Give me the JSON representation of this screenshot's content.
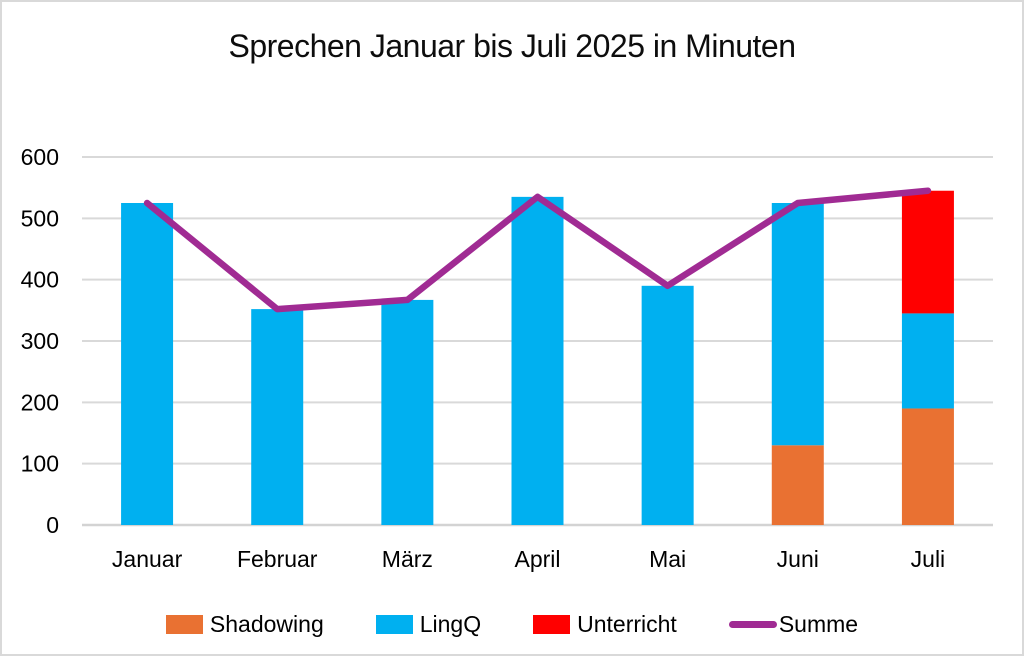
{
  "frame": {
    "background": "#ffffff",
    "border_color": "#d9d9d9"
  },
  "chart_data": {
    "type": "bar",
    "subtype": "stacked-bars-with-line-overlay",
    "title": "Sprechen Januar bis Juli 2025 in Minuten",
    "categories": [
      "Januar",
      "Februar",
      "März",
      "April",
      "Mai",
      "Juni",
      "Juli"
    ],
    "series": [
      {
        "name": "Shadowing",
        "type": "bar",
        "color": "#E97132",
        "values": [
          0,
          0,
          0,
          0,
          0,
          130,
          190
        ]
      },
      {
        "name": "LingQ",
        "type": "bar",
        "color": "#00B0F0",
        "values": [
          525,
          352,
          367,
          535,
          390,
          395,
          155
        ]
      },
      {
        "name": "Unterricht",
        "type": "bar",
        "color": "#FF0000",
        "values": [
          0,
          0,
          0,
          0,
          0,
          0,
          200
        ]
      },
      {
        "name": "Summe",
        "type": "line",
        "color": "#A02B93",
        "values": [
          525,
          352,
          367,
          535,
          390,
          525,
          545
        ]
      }
    ],
    "stacked": true,
    "xlabel": "",
    "ylabel": "",
    "y_axis": {
      "min": 0,
      "max": 600,
      "tick_interval": 100,
      "ticks": [
        0,
        100,
        200,
        300,
        400,
        500,
        600
      ]
    },
    "gridlines": {
      "horizontal": true,
      "color": "#d9d9d9"
    },
    "axis_line_color": "#d3d3d3",
    "legend": {
      "position": "bottom"
    }
  }
}
